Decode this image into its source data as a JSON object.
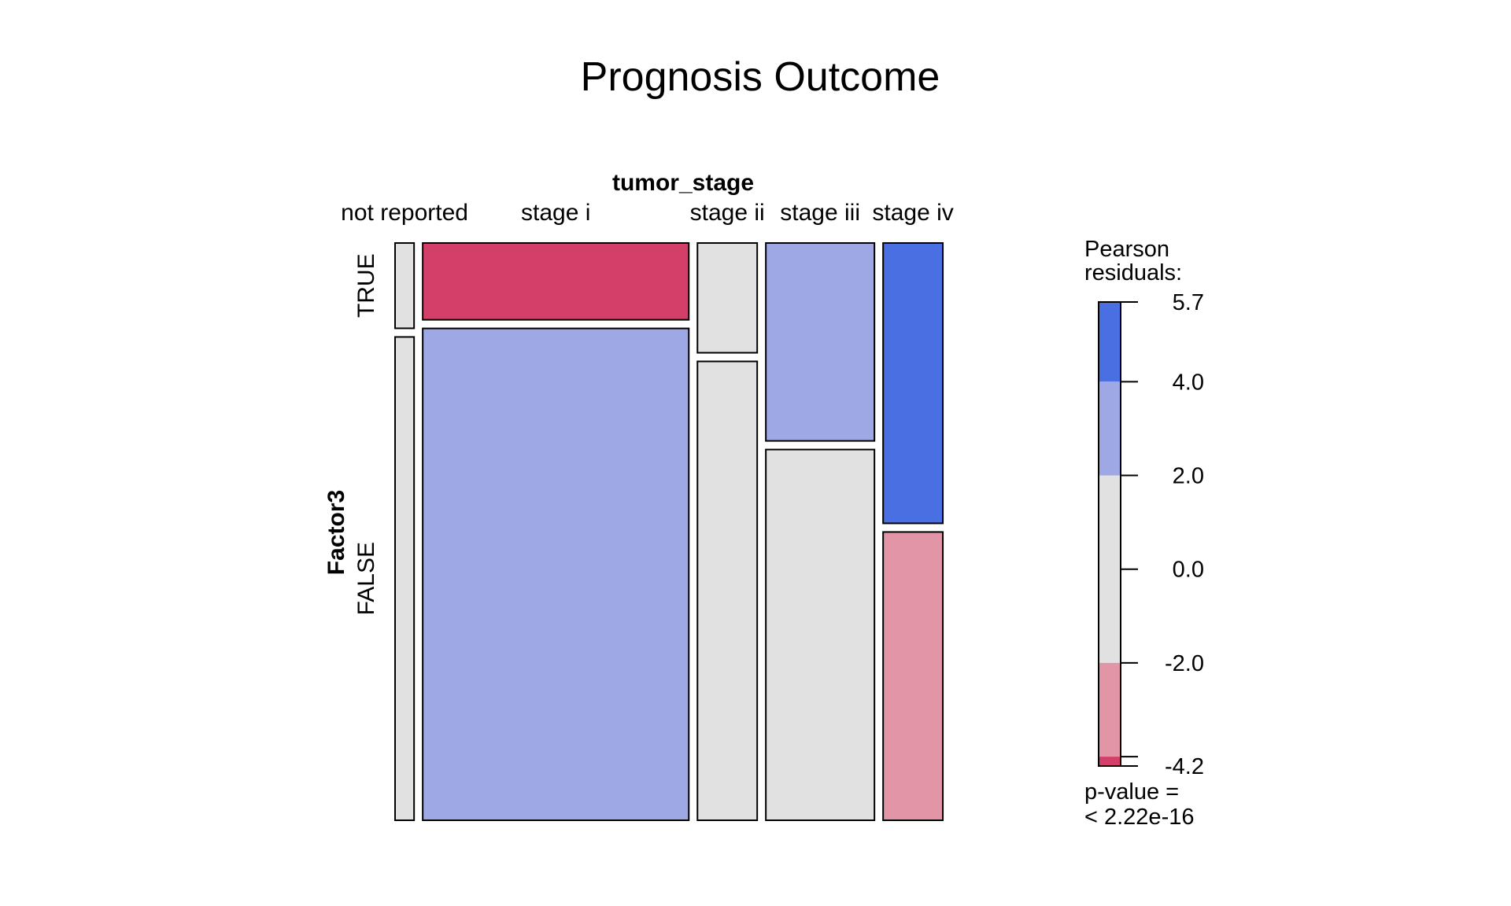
{
  "chart_data": {
    "type": "mosaic",
    "title": "Prognosis Outcome",
    "xvar": "tumor_stage",
    "yvar": "Factor3",
    "columns": [
      "not reported",
      "stage i",
      "stage ii",
      "stage iii",
      "stage iv"
    ],
    "rows": [
      "TRUE",
      "FALSE"
    ],
    "column_proportions": [
      0.035,
      0.49,
      0.11,
      0.2,
      0.11
    ],
    "true_fraction": [
      0.15,
      0.135,
      0.193,
      0.348,
      0.493
    ],
    "residual_fill": [
      [
        "#e1e1e1",
        "#d43f6a",
        "#e1e1e1",
        "#9ea8e4",
        "#4a6fe3"
      ],
      [
        "#e1e1e1",
        "#9ea8e4",
        "#e1e1e1",
        "#e1e1e1",
        "#e295a6"
      ]
    ],
    "legend": {
      "title_line1": "Pearson",
      "title_line2": "residuals:",
      "min": -4.2,
      "max": 5.7,
      "ticks": [
        {
          "value": 5.7,
          "label": "5.7"
        },
        {
          "value": 4.0,
          "label": "4.0"
        },
        {
          "value": 2.0,
          "label": "2.0"
        },
        {
          "value": 0.0,
          "label": "0.0"
        },
        {
          "value": -2.0,
          "label": "-2.0"
        },
        {
          "value": -4.2,
          "label": "-4.2"
        }
      ],
      "extra_tick": -4.0,
      "bands": [
        {
          "from": 4.0,
          "to": 5.7,
          "color": "#4a6fe3"
        },
        {
          "from": 2.0,
          "to": 4.0,
          "color": "#9ea8e4"
        },
        {
          "from": -2.0,
          "to": 2.0,
          "color": "#e1e1e1"
        },
        {
          "from": -4.0,
          "to": -2.0,
          "color": "#e295a6"
        },
        {
          "from": -4.2,
          "to": -4.0,
          "color": "#d43f6a"
        }
      ],
      "pvalue_line1": "p-value =",
      "pvalue_line2": "< 2.22e-16"
    }
  }
}
